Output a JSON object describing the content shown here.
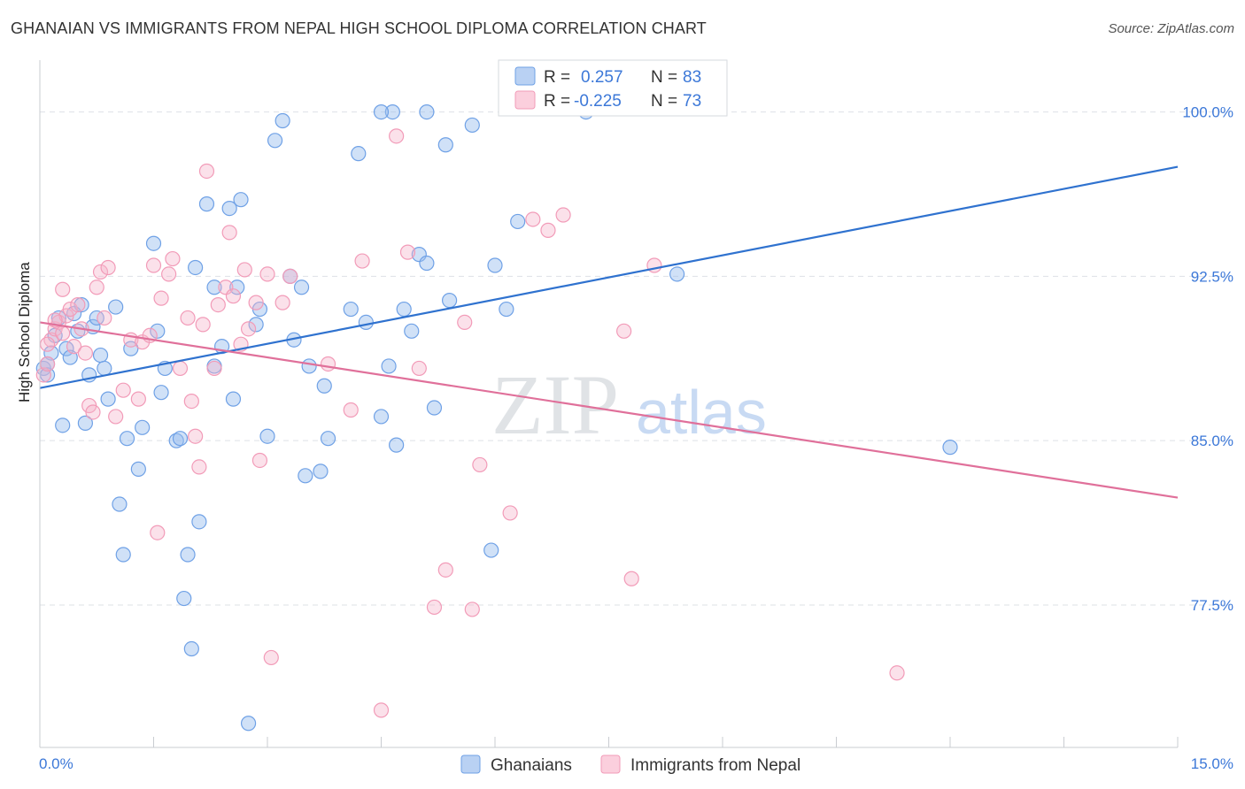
{
  "header": {
    "title": "GHANAIAN VS IMMIGRANTS FROM NEPAL HIGH SCHOOL DIPLOMA CORRELATION CHART",
    "source": "Source: ZipAtlas.com"
  },
  "watermark": {
    "zip": "ZIP",
    "atlas": "atlas"
  },
  "colors": {
    "blue": "#6fa1e6",
    "blue_line": "#2f72cf",
    "blue_text": "#3c78d8",
    "pink": "#f29bb8",
    "pink_line": "#e0709a",
    "grid": "#dde1e6",
    "axis": "#c9ccd1"
  },
  "stats": [
    {
      "r_label": "R =",
      "r_value": "0.257",
      "n_label": "N =",
      "n_value": "83",
      "color": "#6fa1e6"
    },
    {
      "r_label": "R =",
      "r_value": "-0.225",
      "n_label": "N =",
      "n_value": "73",
      "color": "#f29bb8"
    }
  ],
  "chart_data": {
    "type": "scatter",
    "title": "GHANAIAN VS IMMIGRANTS FROM NEPAL HIGH SCHOOL DIPLOMA CORRELATION CHART",
    "xlabel": "",
    "ylabel": "High School Diploma",
    "xlim": [
      0,
      15
    ],
    "ylim": [
      71,
      101.8
    ],
    "x_tick_labels": [
      "0.0%",
      "15.0%"
    ],
    "y_ticks": [
      77.5,
      85.0,
      92.5,
      100.0
    ],
    "y_tick_labels": [
      "77.5%",
      "85.0%",
      "92.5%",
      "100.0%"
    ],
    "grid": true,
    "legend_position": "bottom",
    "series": [
      {
        "name": "Ghanaians",
        "color": "#6fa1e6",
        "trend": {
          "x": [
            0,
            15
          ],
          "y": [
            87.4,
            97.5
          ]
        },
        "points": [
          [
            0.05,
            88.3
          ],
          [
            0.1,
            88.0
          ],
          [
            0.15,
            89.0
          ],
          [
            0.2,
            89.8
          ],
          [
            0.25,
            90.6
          ],
          [
            0.3,
            85.7
          ],
          [
            0.35,
            89.2
          ],
          [
            0.4,
            88.8
          ],
          [
            0.45,
            90.8
          ],
          [
            0.5,
            90.0
          ],
          [
            0.55,
            91.2
          ],
          [
            0.6,
            85.8
          ],
          [
            0.65,
            88.0
          ],
          [
            0.7,
            90.2
          ],
          [
            0.75,
            90.6
          ],
          [
            0.8,
            88.9
          ],
          [
            0.85,
            88.3
          ],
          [
            0.9,
            86.9
          ],
          [
            1.0,
            91.1
          ],
          [
            1.05,
            82.1
          ],
          [
            1.1,
            79.8
          ],
          [
            1.15,
            85.1
          ],
          [
            1.2,
            89.2
          ],
          [
            1.3,
            83.7
          ],
          [
            1.35,
            85.6
          ],
          [
            1.5,
            94.0
          ],
          [
            1.55,
            90.0
          ],
          [
            1.6,
            87.2
          ],
          [
            1.65,
            88.3
          ],
          [
            1.8,
            85.0
          ],
          [
            1.85,
            85.1
          ],
          [
            1.9,
            77.8
          ],
          [
            1.95,
            79.8
          ],
          [
            2.0,
            75.5
          ],
          [
            2.05,
            92.9
          ],
          [
            2.1,
            81.3
          ],
          [
            2.2,
            95.8
          ],
          [
            2.3,
            92.0
          ],
          [
            2.3,
            88.4
          ],
          [
            2.4,
            89.3
          ],
          [
            2.5,
            95.6
          ],
          [
            2.55,
            86.9
          ],
          [
            2.6,
            92.0
          ],
          [
            2.65,
            96.0
          ],
          [
            2.75,
            72.1
          ],
          [
            2.85,
            90.3
          ],
          [
            2.9,
            91.0
          ],
          [
            3.0,
            85.2
          ],
          [
            3.1,
            98.7
          ],
          [
            3.2,
            99.6
          ],
          [
            3.3,
            92.5
          ],
          [
            3.35,
            89.6
          ],
          [
            3.45,
            92.0
          ],
          [
            3.5,
            83.4
          ],
          [
            3.55,
            88.4
          ],
          [
            3.7,
            83.6
          ],
          [
            3.75,
            87.5
          ],
          [
            3.8,
            85.1
          ],
          [
            4.1,
            91.0
          ],
          [
            4.2,
            98.1
          ],
          [
            4.3,
            90.4
          ],
          [
            4.5,
            86.1
          ],
          [
            4.6,
            88.4
          ],
          [
            4.65,
            100.0
          ],
          [
            4.7,
            84.8
          ],
          [
            4.8,
            91.0
          ],
          [
            4.9,
            90.0
          ],
          [
            5.0,
            93.5
          ],
          [
            5.1,
            93.1
          ],
          [
            5.2,
            86.5
          ],
          [
            5.35,
            98.5
          ],
          [
            5.4,
            91.4
          ],
          [
            5.7,
            99.4
          ],
          [
            5.95,
            80.0
          ],
          [
            6.0,
            93.0
          ],
          [
            6.15,
            91.0
          ],
          [
            6.3,
            95.0
          ],
          [
            7.2,
            100.0
          ],
          [
            8.4,
            92.6
          ],
          [
            12.0,
            84.7
          ],
          [
            4.5,
            100.0
          ],
          [
            5.1,
            100.0
          ],
          [
            0.1,
            88.5
          ]
        ]
      },
      {
        "name": "Immigrants from Nepal",
        "color": "#f29bb8",
        "trend": {
          "x": [
            0,
            15
          ],
          "y": [
            90.4,
            82.4
          ]
        },
        "points": [
          [
            0.05,
            88.0
          ],
          [
            0.1,
            88.5
          ],
          [
            0.15,
            89.6
          ],
          [
            0.2,
            90.1
          ],
          [
            0.25,
            90.4
          ],
          [
            0.3,
            91.9
          ],
          [
            0.35,
            90.7
          ],
          [
            0.4,
            91.0
          ],
          [
            0.45,
            89.3
          ],
          [
            0.5,
            91.2
          ],
          [
            0.55,
            90.1
          ],
          [
            0.6,
            89.0
          ],
          [
            0.65,
            86.6
          ],
          [
            0.7,
            86.3
          ],
          [
            0.75,
            92.0
          ],
          [
            0.8,
            92.7
          ],
          [
            0.85,
            90.6
          ],
          [
            0.9,
            92.9
          ],
          [
            1.0,
            86.1
          ],
          [
            1.1,
            87.3
          ],
          [
            1.2,
            89.6
          ],
          [
            1.3,
            86.9
          ],
          [
            1.35,
            89.5
          ],
          [
            1.45,
            89.8
          ],
          [
            1.5,
            93.0
          ],
          [
            1.55,
            80.8
          ],
          [
            1.6,
            91.5
          ],
          [
            1.7,
            92.6
          ],
          [
            1.75,
            93.3
          ],
          [
            1.85,
            88.3
          ],
          [
            1.95,
            90.6
          ],
          [
            2.0,
            86.8
          ],
          [
            2.05,
            85.2
          ],
          [
            2.1,
            83.8
          ],
          [
            2.15,
            90.3
          ],
          [
            2.2,
            97.3
          ],
          [
            2.3,
            88.3
          ],
          [
            2.35,
            91.2
          ],
          [
            2.45,
            92.0
          ],
          [
            2.5,
            94.5
          ],
          [
            2.55,
            91.6
          ],
          [
            2.65,
            89.4
          ],
          [
            2.7,
            92.8
          ],
          [
            2.75,
            90.1
          ],
          [
            2.85,
            91.3
          ],
          [
            2.9,
            84.1
          ],
          [
            3.0,
            92.6
          ],
          [
            3.05,
            75.1
          ],
          [
            3.2,
            91.3
          ],
          [
            3.3,
            92.5
          ],
          [
            3.8,
            88.5
          ],
          [
            4.1,
            86.4
          ],
          [
            4.25,
            93.2
          ],
          [
            4.5,
            72.7
          ],
          [
            4.7,
            98.9
          ],
          [
            4.85,
            93.6
          ],
          [
            5.0,
            88.3
          ],
          [
            5.2,
            77.4
          ],
          [
            5.35,
            79.1
          ],
          [
            5.6,
            90.4
          ],
          [
            5.7,
            77.3
          ],
          [
            5.8,
            83.9
          ],
          [
            6.2,
            81.7
          ],
          [
            6.5,
            95.1
          ],
          [
            6.7,
            94.6
          ],
          [
            6.9,
            95.3
          ],
          [
            7.7,
            90.0
          ],
          [
            7.8,
            78.7
          ],
          [
            8.1,
            93.0
          ],
          [
            11.3,
            74.4
          ],
          [
            0.2,
            90.5
          ],
          [
            0.3,
            89.9
          ],
          [
            0.1,
            89.4
          ]
        ]
      }
    ]
  }
}
